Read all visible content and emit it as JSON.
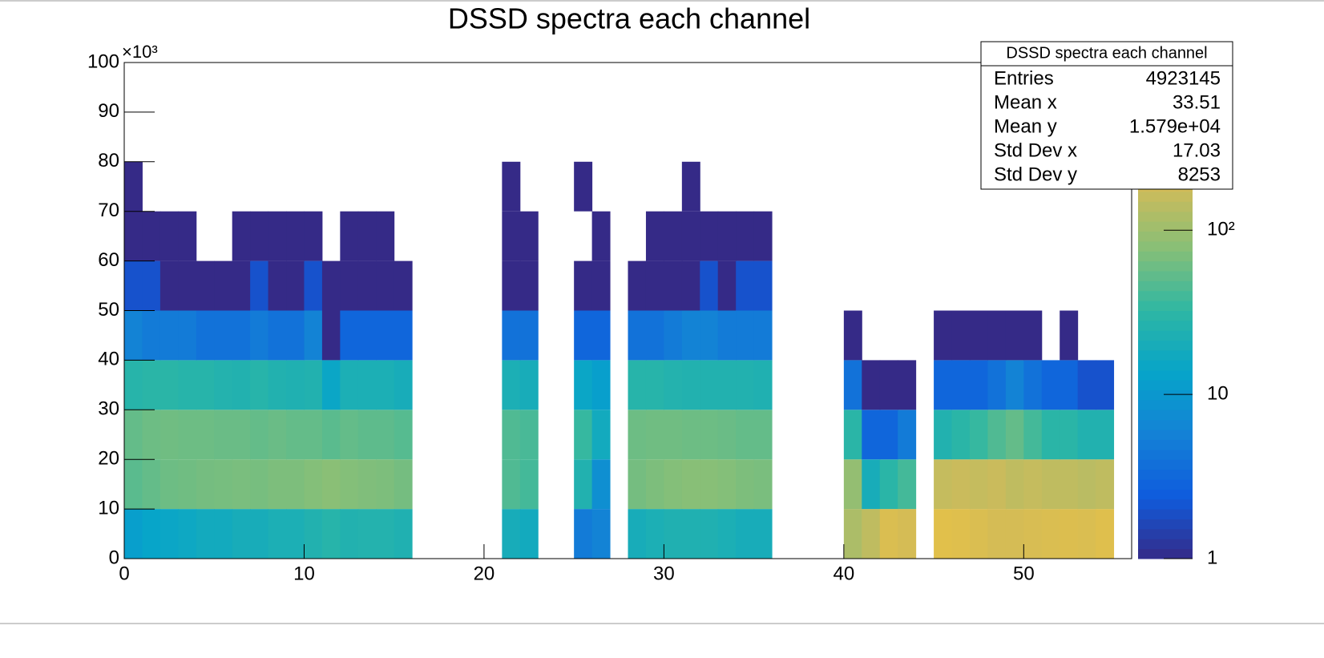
{
  "chart_data": {
    "type": "heatmap",
    "title": "DSSD spectra each channel",
    "y_multiplier": "×10³",
    "x": [
      0,
      1,
      2,
      3,
      4,
      5,
      6,
      7,
      8,
      9,
      10,
      11,
      12,
      13,
      14,
      15,
      21,
      22,
      25,
      26,
      28,
      29,
      30,
      31,
      32,
      33,
      34,
      35,
      40,
      41,
      42,
      43,
      45,
      46,
      47,
      48,
      49,
      50,
      51,
      52,
      53,
      54
    ],
    "ybins": [
      0,
      10,
      20,
      30,
      40,
      50,
      60,
      70,
      80
    ],
    "z": [
      [
        12,
        50,
        55,
        28,
        6,
        2,
        1,
        1
      ],
      [
        14,
        55,
        60,
        30,
        5,
        2,
        1,
        null
      ],
      [
        15,
        60,
        62,
        30,
        5,
        1,
        1,
        null
      ],
      [
        16,
        62,
        60,
        28,
        5,
        1,
        1,
        null
      ],
      [
        18,
        65,
        60,
        28,
        4,
        1,
        null,
        null
      ],
      [
        18,
        66,
        58,
        26,
        4,
        1,
        null,
        null
      ],
      [
        20,
        68,
        58,
        25,
        4,
        1,
        1,
        null
      ],
      [
        20,
        66,
        55,
        28,
        5,
        2,
        1,
        null
      ],
      [
        22,
        70,
        58,
        25,
        4,
        1,
        1,
        null
      ],
      [
        22,
        70,
        55,
        24,
        4,
        1,
        1,
        null
      ],
      [
        25,
        75,
        55,
        25,
        6,
        2,
        1,
        null
      ],
      [
        28,
        80,
        50,
        15,
        1,
        1,
        null,
        null
      ],
      [
        25,
        75,
        55,
        22,
        3,
        1,
        1,
        null
      ],
      [
        26,
        72,
        52,
        22,
        3,
        1,
        1,
        null
      ],
      [
        26,
        70,
        52,
        22,
        3,
        1,
        1,
        null
      ],
      [
        24,
        65,
        48,
        20,
        3,
        1,
        null,
        null
      ],
      [
        20,
        45,
        45,
        22,
        4,
        1,
        1,
        1
      ],
      [
        18,
        40,
        42,
        20,
        4,
        1,
        1,
        null
      ],
      [
        5,
        25,
        35,
        15,
        3,
        1,
        null,
        1
      ],
      [
        6,
        8,
        18,
        12,
        3,
        1,
        1,
        null
      ],
      [
        20,
        65,
        60,
        28,
        4,
        1,
        null,
        null
      ],
      [
        22,
        70,
        62,
        28,
        4,
        1,
        1,
        null
      ],
      [
        24,
        75,
        62,
        26,
        5,
        1,
        1,
        null
      ],
      [
        24,
        78,
        60,
        25,
        6,
        1,
        1,
        1
      ],
      [
        24,
        78,
        60,
        25,
        6,
        2,
        1,
        null
      ],
      [
        22,
        75,
        58,
        25,
        5,
        1,
        1,
        null
      ],
      [
        20,
        70,
        55,
        25,
        5,
        2,
        1,
        null
      ],
      [
        20,
        68,
        55,
        24,
        5,
        2,
        1,
        null
      ],
      [
        120,
        90,
        30,
        4,
        1,
        null,
        null,
        null
      ],
      [
        150,
        20,
        3,
        1,
        null,
        null,
        null,
        null
      ],
      [
        220,
        30,
        3,
        1,
        null,
        null,
        null,
        null
      ],
      [
        200,
        40,
        5,
        1,
        null,
        null,
        null,
        null
      ],
      [
        250,
        160,
        25,
        3,
        1,
        null,
        null,
        null
      ],
      [
        240,
        170,
        30,
        3,
        1,
        null,
        null,
        null
      ],
      [
        220,
        160,
        35,
        3,
        1,
        null,
        null,
        null
      ],
      [
        200,
        170,
        45,
        4,
        1,
        null,
        null,
        null
      ],
      [
        200,
        150,
        55,
        6,
        1,
        null,
        null,
        null
      ],
      [
        210,
        160,
        40,
        4,
        1,
        null,
        null,
        null
      ],
      [
        220,
        150,
        30,
        3,
        null,
        null,
        null,
        null
      ],
      [
        230,
        150,
        30,
        3,
        1,
        null,
        null,
        null
      ],
      [
        220,
        140,
        25,
        2,
        null,
        null,
        null,
        null
      ],
      [
        240,
        150,
        25,
        2,
        null,
        null,
        null,
        null
      ]
    ],
    "xlim": [
      0,
      56
    ],
    "xticks": [
      0,
      10,
      20,
      30,
      40,
      50
    ],
    "ylim": [
      0,
      100
    ],
    "yticks": [
      0,
      10,
      20,
      30,
      40,
      50,
      60,
      70,
      80,
      90,
      100
    ],
    "zlim": [
      1,
      1050
    ],
    "zscale": "log",
    "zticks": [
      1,
      10,
      {
        "value": 100,
        "label": "10²"
      }
    ],
    "palette": [
      "#352a87",
      "#0f5cdd",
      "#1481d6",
      "#06a4ca",
      "#2eb7a4",
      "#87bf77",
      "#d1bb59",
      "#fec832",
      "#f9fb0e"
    ],
    "stats": {
      "title": "DSSD spectra each channel",
      "rows": [
        {
          "label": "Entries",
          "value": 4923145
        },
        {
          "label": "Mean x",
          "value": 33.51
        },
        {
          "label": "Mean y",
          "value": {
            "value": 15790,
            "label": "1.579e+04"
          }
        },
        {
          "label": "Std Dev x",
          "value": 17.03
        },
        {
          "label": "Std Dev y",
          "value": 8253
        }
      ]
    }
  }
}
